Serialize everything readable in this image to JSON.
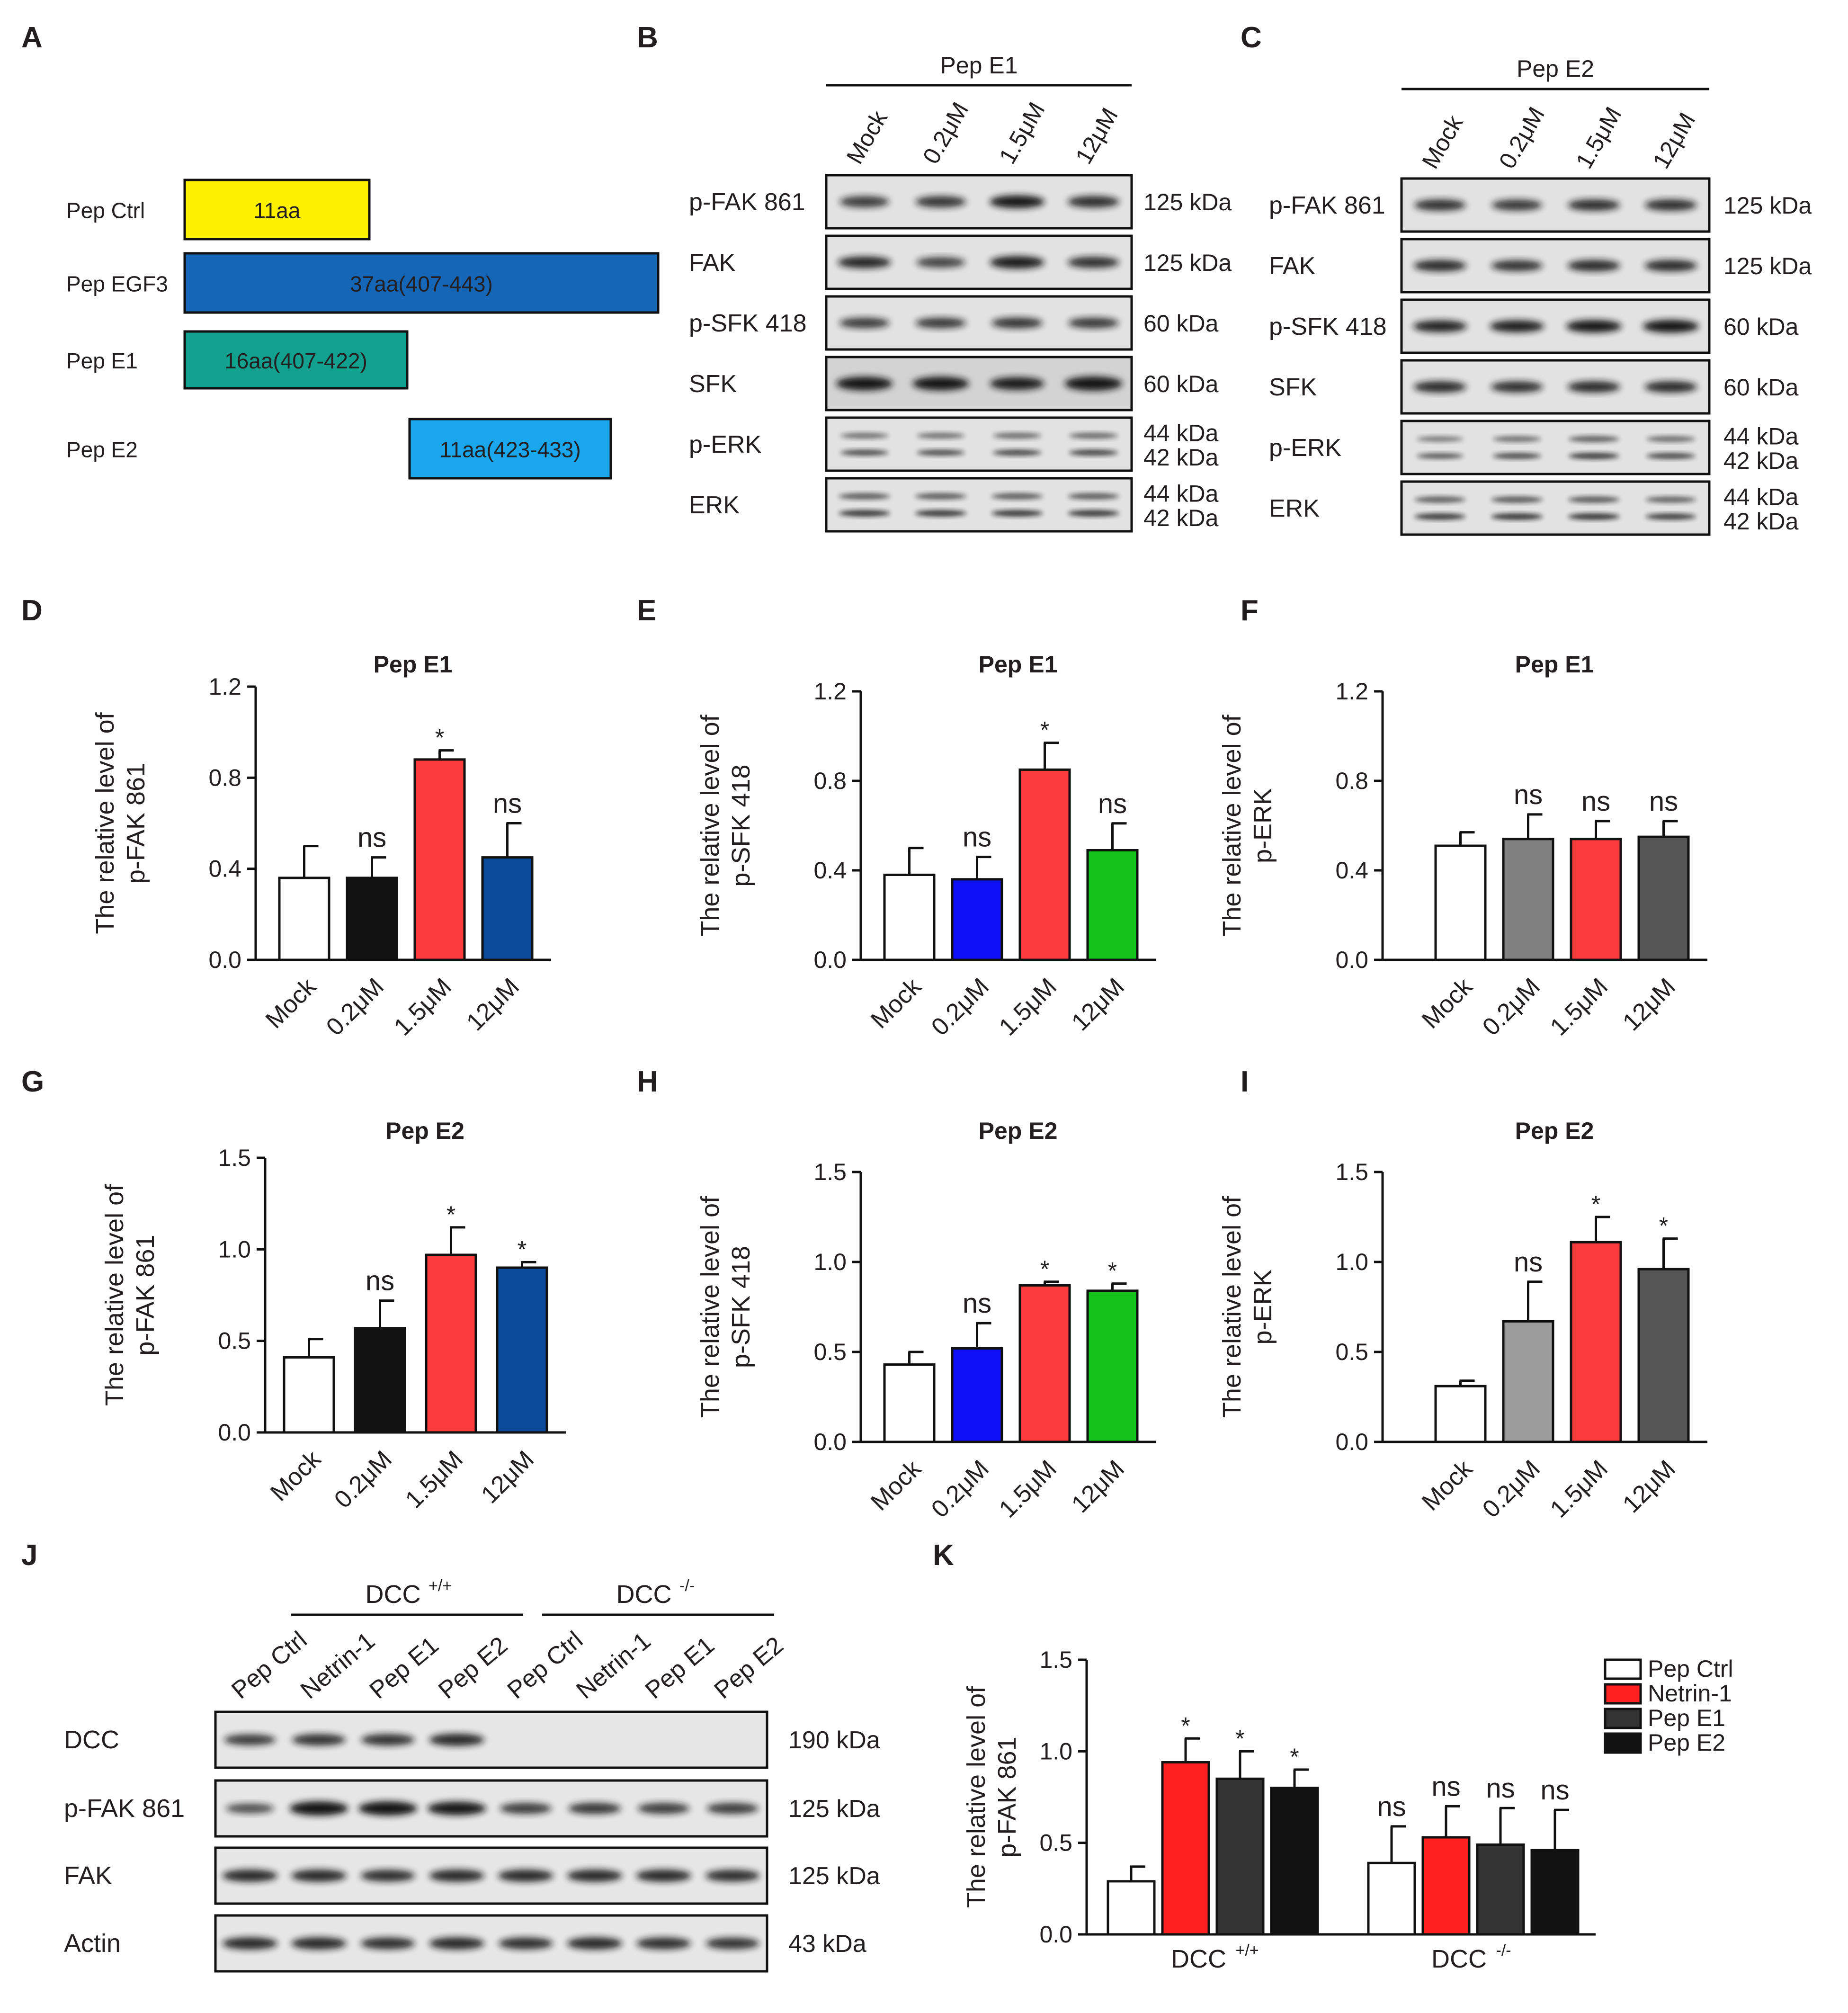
{
  "panel_letters": [
    "A",
    "B",
    "C",
    "D",
    "E",
    "F",
    "G",
    "H",
    "I",
    "J",
    "K"
  ],
  "colors": {
    "yellow": "#fff200",
    "blue_dark": "#1666b8",
    "teal": "#12a08f",
    "blue_light": "#1aa7ec",
    "red": "#fc3c3c",
    "black": "#111111",
    "navy": "#0b4a9a",
    "royal": "#0f10f5",
    "green": "#13c21b",
    "gray_mid": "#808080",
    "gray_dark": "#555555",
    "gray_light": "#9c9c9c",
    "white": "#ffffff",
    "red_k": "#ff2020",
    "dark_k": "#333333"
  },
  "panelA": {
    "rows": [
      {
        "label": "Pep Ctrl",
        "text": "11aa",
        "color": "#fff200"
      },
      {
        "label": "Pep EGF3",
        "text": "37aa(407-443)",
        "color": "#1666b8"
      },
      {
        "label": "Pep E1",
        "text": "16aa(407-422)",
        "color": "#12a08f"
      },
      {
        "label": "Pep E2",
        "text": "11aa(423-433)",
        "color": "#1aa7ec"
      }
    ]
  },
  "panelB": {
    "header": "Pep E1",
    "lanes": [
      "Mock",
      "0.2μM",
      "1.5μM",
      "12μM"
    ],
    "blots": [
      {
        "label": "p-FAK 861",
        "kda": [
          "125 kDa"
        ]
      },
      {
        "label": "FAK",
        "kda": [
          "125 kDa"
        ]
      },
      {
        "label": "p-SFK 418",
        "kda": [
          "60 kDa"
        ]
      },
      {
        "label": "SFK",
        "kda": [
          "60 kDa"
        ]
      },
      {
        "label": "p-ERK",
        "kda": [
          "44 kDa",
          "42 kDa"
        ]
      },
      {
        "label": "ERK",
        "kda": [
          "44 kDa",
          "42 kDa"
        ]
      }
    ]
  },
  "panelC": {
    "header": "Pep E2",
    "lanes": [
      "Mock",
      "0.2μM",
      "1.5μM",
      "12μM"
    ],
    "blots": [
      {
        "label": "p-FAK 861",
        "kda": [
          "125 kDa"
        ]
      },
      {
        "label": "FAK",
        "kda": [
          "125 kDa"
        ]
      },
      {
        "label": "p-SFK 418",
        "kda": [
          "60 kDa"
        ]
      },
      {
        "label": "SFK",
        "kda": [
          "60 kDa"
        ]
      },
      {
        "label": "p-ERK",
        "kda": [
          "44 kDa",
          "42 kDa"
        ]
      },
      {
        "label": "ERK",
        "kda": [
          "44 kDa",
          "42 kDa"
        ]
      }
    ]
  },
  "panelJ": {
    "group_labels": [
      "DCC",
      "DCC"
    ],
    "group_supers": [
      "+/+",
      "-/-"
    ],
    "lanes": [
      "Pep Ctrl",
      "Netrin-1",
      "Pep E1",
      "Pep E2",
      "Pep Ctrl",
      "Netrin-1",
      "Pep E1",
      "Pep E2"
    ],
    "blots": [
      {
        "label": "DCC",
        "kda": "190 kDa"
      },
      {
        "label": "p-FAK 861",
        "kda": "125 kDa"
      },
      {
        "label": "FAK",
        "kda": "125 kDa"
      },
      {
        "label": "Actin",
        "kda": "43 kDa"
      }
    ]
  },
  "chart_data": [
    {
      "panel": "D",
      "type": "bar",
      "title": "Pep E1",
      "ylabel": [
        "The relative level of",
        "p-FAK 861"
      ],
      "categories": [
        "Mock",
        "0.2μM",
        "1.5μM",
        "12μM"
      ],
      "values": [
        0.36,
        0.36,
        0.88,
        0.45
      ],
      "errors": [
        0.14,
        0.09,
        0.04,
        0.15
      ],
      "sig": [
        "",
        "ns",
        "*",
        "ns"
      ],
      "colors": [
        "#ffffff",
        "#111111",
        "#fc3c3c",
        "#0b4a9a"
      ],
      "ylim": [
        0,
        1.2
      ],
      "yticks": [
        "0.0",
        "0.4",
        "0.8",
        "1.2"
      ]
    },
    {
      "panel": "E",
      "type": "bar",
      "title": "Pep E1",
      "ylabel": [
        "The relative level of",
        "p-SFK 418"
      ],
      "categories": [
        "Mock",
        "0.2μM",
        "1.5μM",
        "12μM"
      ],
      "values": [
        0.38,
        0.36,
        0.85,
        0.49
      ],
      "errors": [
        0.12,
        0.1,
        0.12,
        0.12
      ],
      "sig": [
        "",
        "ns",
        "*",
        "ns"
      ],
      "colors": [
        "#ffffff",
        "#0f10f5",
        "#fc3c3c",
        "#13c21b"
      ],
      "ylim": [
        0,
        1.2
      ],
      "yticks": [
        "0.0",
        "0.4",
        "0.8",
        "1.2"
      ]
    },
    {
      "panel": "F",
      "type": "bar",
      "title": "Pep E1",
      "ylabel": [
        "The relative level of",
        "p-ERK"
      ],
      "categories": [
        "Mock",
        "0.2μM",
        "1.5μM",
        "12μM"
      ],
      "values": [
        0.51,
        0.54,
        0.54,
        0.55
      ],
      "errors": [
        0.06,
        0.11,
        0.08,
        0.07
      ],
      "sig": [
        "",
        "ns",
        "ns",
        "ns"
      ],
      "colors": [
        "#ffffff",
        "#808080",
        "#fc3c3c",
        "#555555"
      ],
      "ylim": [
        0,
        1.2
      ],
      "yticks": [
        "0.0",
        "0.4",
        "0.8",
        "1.2"
      ]
    },
    {
      "panel": "G",
      "type": "bar",
      "title": "Pep E2",
      "ylabel": [
        "The relative level of",
        "p-FAK 861"
      ],
      "categories": [
        "Mock",
        "0.2μM",
        "1.5μM",
        "12μM"
      ],
      "values": [
        0.41,
        0.57,
        0.97,
        0.9
      ],
      "errors": [
        0.1,
        0.15,
        0.15,
        0.03
      ],
      "sig": [
        "",
        "ns",
        "*",
        "*"
      ],
      "colors": [
        "#ffffff",
        "#111111",
        "#fc3c3c",
        "#0b4a9a"
      ],
      "ylim": [
        0,
        1.5
      ],
      "yticks": [
        "0.0",
        "0.5",
        "1.0",
        "1.5"
      ]
    },
    {
      "panel": "H",
      "type": "bar",
      "title": "Pep E2",
      "ylabel": [
        "The relative level of",
        "p-SFK 418"
      ],
      "categories": [
        "Mock",
        "0.2μM",
        "1.5μM",
        "12μM"
      ],
      "values": [
        0.43,
        0.52,
        0.87,
        0.84
      ],
      "errors": [
        0.07,
        0.14,
        0.02,
        0.04
      ],
      "sig": [
        "",
        "ns",
        "*",
        "*"
      ],
      "colors": [
        "#ffffff",
        "#0f10f5",
        "#fc3c3c",
        "#13c21b"
      ],
      "ylim": [
        0,
        1.5
      ],
      "yticks": [
        "0.0",
        "0.5",
        "1.0",
        "1.5"
      ]
    },
    {
      "panel": "I",
      "type": "bar",
      "title": "Pep E2",
      "ylabel": [
        "The relative level of",
        "p-ERK"
      ],
      "categories": [
        "Mock",
        "0.2μM",
        "1.5μM",
        "12μM"
      ],
      "values": [
        0.31,
        0.67,
        1.11,
        0.96
      ],
      "errors": [
        0.03,
        0.22,
        0.14,
        0.17
      ],
      "sig": [
        "",
        "ns",
        "*",
        "*"
      ],
      "colors": [
        "#ffffff",
        "#9c9c9c",
        "#fc3c3c",
        "#555555"
      ],
      "ylim": [
        0,
        1.5
      ],
      "yticks": [
        "0.0",
        "0.5",
        "1.0",
        "1.5"
      ]
    },
    {
      "panel": "K",
      "type": "bar",
      "ylabel": [
        "The relative level of",
        "p-FAK 861"
      ],
      "groups": [
        "DCC",
        "DCC"
      ],
      "group_supers": [
        "+/+",
        "-/-"
      ],
      "series": [
        {
          "name": "Pep Ctrl",
          "color": "#ffffff",
          "values": [
            0.29,
            0.39
          ],
          "errors": [
            0.08,
            0.2
          ],
          "sig": [
            "",
            "ns"
          ]
        },
        {
          "name": "Netrin-1",
          "color": "#ff2020",
          "values": [
            0.94,
            0.53
          ],
          "errors": [
            0.13,
            0.17
          ],
          "sig": [
            "*",
            "ns"
          ]
        },
        {
          "name": "Pep E1",
          "color": "#333333",
          "values": [
            0.85,
            0.49
          ],
          "errors": [
            0.15,
            0.2
          ],
          "sig": [
            "*",
            "ns"
          ]
        },
        {
          "name": "Pep E2",
          "color": "#111111",
          "values": [
            0.8,
            0.46
          ],
          "errors": [
            0.1,
            0.22
          ],
          "sig": [
            "*",
            "ns"
          ]
        }
      ],
      "ylim": [
        0,
        1.5
      ],
      "yticks": [
        "0.0",
        "0.5",
        "1.0",
        "1.5"
      ],
      "legend": "top-right"
    }
  ]
}
